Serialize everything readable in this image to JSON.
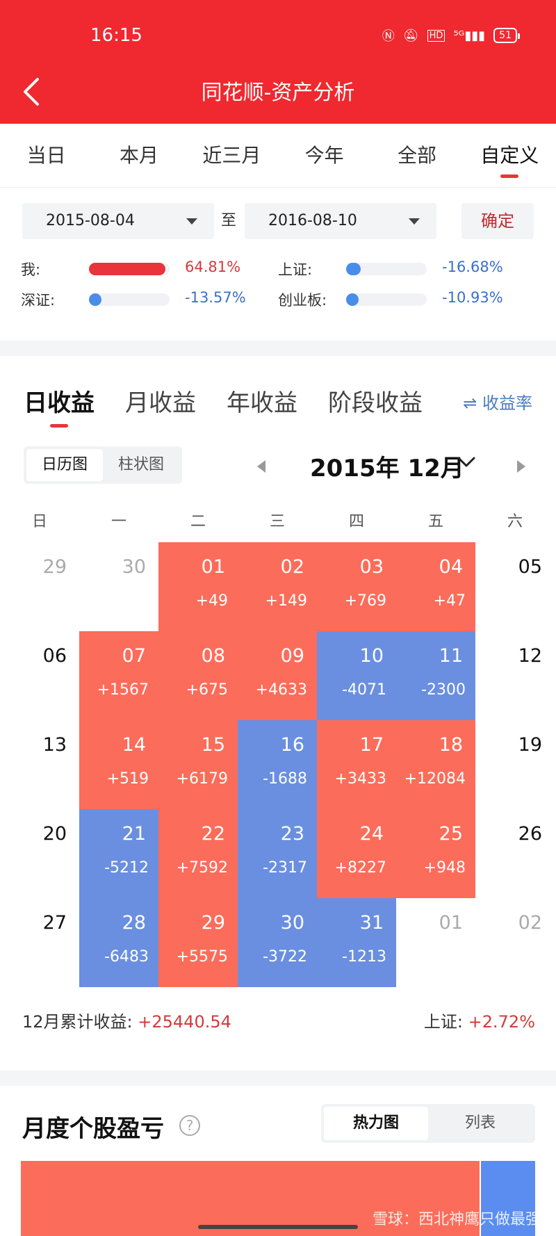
{
  "status_bar": {
    "time": "16:15",
    "icons": [
      "nfc-icon",
      "mute-icon",
      "hd-icon",
      "5g-signal-icon"
    ],
    "battery": "51"
  },
  "header": {
    "title": "同花顺-资产分析"
  },
  "period_tabs": [
    {
      "label": "当日",
      "active": false
    },
    {
      "label": "本月",
      "active": false
    },
    {
      "label": "近三月",
      "active": false
    },
    {
      "label": "今年",
      "active": false
    },
    {
      "label": "全部",
      "active": false
    },
    {
      "label": "自定义",
      "active": true
    }
  ],
  "date_range": {
    "start": "2015-08-04",
    "separator": "至",
    "end": "2016-08-10",
    "confirm_label": "确定"
  },
  "comparison": [
    {
      "label": "我:",
      "value": "64.81%",
      "level": 0.95,
      "color": "#e8343a",
      "value_color": "#d43a3a"
    },
    {
      "label": "上证:",
      "value": "-16.68%",
      "level": 0.18,
      "color": "#4a8de8",
      "value_color": "#3a6fc8"
    },
    {
      "label": "深证:",
      "value": "-13.57%",
      "level": 0.15,
      "color": "#4a8de8",
      "value_color": "#3a6fc8"
    },
    {
      "label": "创业板:",
      "value": "-10.93%",
      "level": 0.13,
      "color": "#4a8de8",
      "value_color": "#3a6fc8"
    }
  ],
  "income_tabs": [
    {
      "label": "日收益",
      "active": true
    },
    {
      "label": "月收益",
      "active": false
    },
    {
      "label": "年收益",
      "active": false
    },
    {
      "label": "阶段收益",
      "active": false
    }
  ],
  "rate_toggle": "⇌ 收益率",
  "view_toggle": {
    "calendar": "日历图",
    "bar": "柱状图"
  },
  "month": "2015年 12月",
  "weekdays": [
    "日",
    "一",
    "二",
    "三",
    "四",
    "五",
    "六"
  ],
  "calendar": [
    [
      {
        "day": "29",
        "style": "muted"
      },
      {
        "day": "30",
        "style": "muted"
      },
      {
        "day": "01",
        "amt": "+49",
        "style": "red"
      },
      {
        "day": "02",
        "amt": "+149",
        "style": "red"
      },
      {
        "day": "03",
        "amt": "+769",
        "style": "red"
      },
      {
        "day": "04",
        "amt": "+47",
        "style": "red"
      },
      {
        "day": "05",
        "style": "plain"
      }
    ],
    [
      {
        "day": "06",
        "style": "plain"
      },
      {
        "day": "07",
        "amt": "+1567",
        "style": "red"
      },
      {
        "day": "08",
        "amt": "+675",
        "style": "red"
      },
      {
        "day": "09",
        "amt": "+4633",
        "style": "red"
      },
      {
        "day": "10",
        "amt": "-4071",
        "style": "blue"
      },
      {
        "day": "11",
        "amt": "-2300",
        "style": "blue"
      },
      {
        "day": "12",
        "style": "plain"
      }
    ],
    [
      {
        "day": "13",
        "style": "plain"
      },
      {
        "day": "14",
        "amt": "+519",
        "style": "red"
      },
      {
        "day": "15",
        "amt": "+6179",
        "style": "red"
      },
      {
        "day": "16",
        "amt": "-1688",
        "style": "blue"
      },
      {
        "day": "17",
        "amt": "+3433",
        "style": "red"
      },
      {
        "day": "18",
        "amt": "+12084",
        "style": "red"
      },
      {
        "day": "19",
        "style": "plain"
      }
    ],
    [
      {
        "day": "20",
        "style": "plain"
      },
      {
        "day": "21",
        "amt": "-5212",
        "style": "blue"
      },
      {
        "day": "22",
        "amt": "+7592",
        "style": "red"
      },
      {
        "day": "23",
        "amt": "-2317",
        "style": "blue"
      },
      {
        "day": "24",
        "amt": "+8227",
        "style": "red"
      },
      {
        "day": "25",
        "amt": "+948",
        "style": "red"
      },
      {
        "day": "26",
        "style": "plain"
      }
    ],
    [
      {
        "day": "27",
        "style": "plain"
      },
      {
        "day": "28",
        "amt": "-6483",
        "style": "blue"
      },
      {
        "day": "29",
        "amt": "+5575",
        "style": "red"
      },
      {
        "day": "30",
        "amt": "-3722",
        "style": "blue"
      },
      {
        "day": "31",
        "amt": "-1213",
        "style": "blue"
      },
      {
        "day": "01",
        "style": "muted"
      },
      {
        "day": "02",
        "style": "muted"
      }
    ]
  ],
  "summary": {
    "label": "12月累计收益:",
    "value": "+25440.54",
    "index_label": "上证:",
    "index_value": "+2.72%"
  },
  "stock_section": {
    "title": "月度个股盈亏",
    "help": "?",
    "tab_heat": "热力图",
    "tab_list": "列表"
  },
  "watermark": "雪球：西北神鹰只做最强",
  "colors": {
    "brand": "#f0282f",
    "gain": "#fc6c5a",
    "loss": "#6a8fe0"
  }
}
